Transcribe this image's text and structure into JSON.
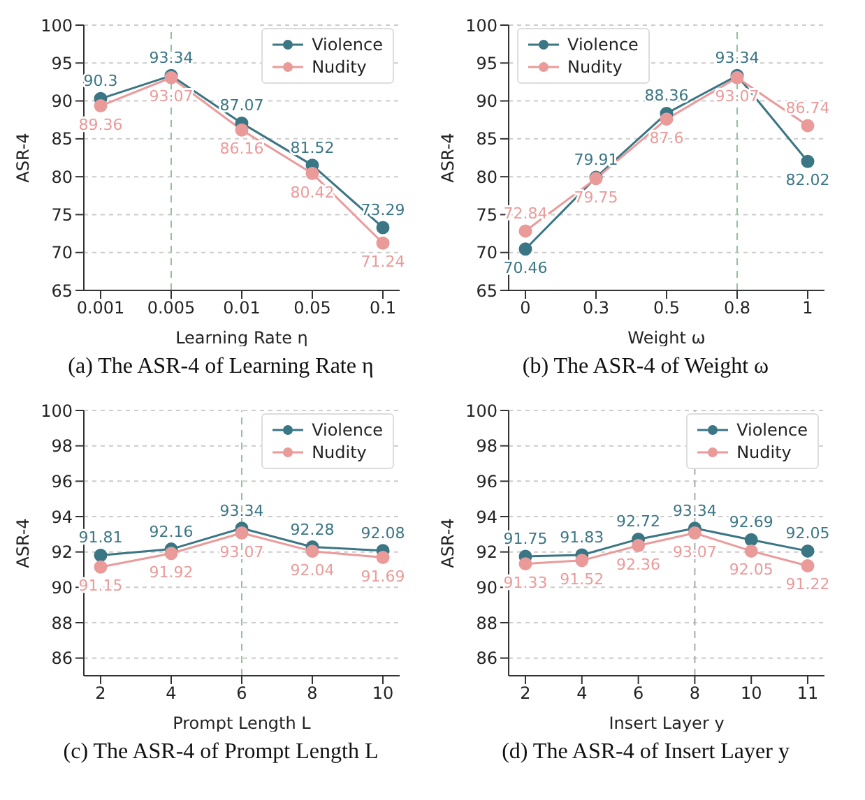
{
  "chart_data": [
    {
      "type": "line",
      "title": "(a) The ASR-4 of Learning Rate η",
      "xlabel": "Learning Rate η",
      "ylabel": "ASR-4",
      "categories": [
        "0.001",
        "0.005",
        "0.01",
        "0.05",
        "0.1"
      ],
      "series": [
        {
          "name": "Violence",
          "color": "#3a7684",
          "values": [
            90.3,
            93.34,
            87.07,
            81.52,
            73.29
          ]
        },
        {
          "name": "Nudity",
          "color": "#eb9a9a",
          "values": [
            89.36,
            93.07,
            86.16,
            80.42,
            71.24
          ]
        }
      ],
      "ylim": [
        65,
        100
      ],
      "yticks": [
        65,
        70,
        75,
        80,
        85,
        90,
        95,
        100
      ],
      "grid": "y",
      "legend": "top right",
      "marker": "circle",
      "line_style": "solid",
      "data_labels": true,
      "ref_lines": [
        {
          "axis": "x",
          "value": "0.005",
          "color": "#93c29a",
          "line_style": "dashed"
        }
      ]
    },
    {
      "type": "line",
      "title": "(b) The ASR-4 of Weight ω",
      "xlabel": "Weight ω",
      "ylabel": "ASR-4",
      "categories": [
        "0",
        "0.3",
        "0.5",
        "0.8",
        "1"
      ],
      "series": [
        {
          "name": "Violence",
          "color": "#3a7684",
          "values": [
            70.46,
            79.91,
            88.36,
            93.34,
            82.02
          ]
        },
        {
          "name": "Nudity",
          "color": "#eb9a9a",
          "values": [
            72.84,
            79.75,
            87.6,
            93.07,
            86.74
          ]
        }
      ],
      "ylim": [
        65,
        100
      ],
      "yticks": [
        65,
        70,
        75,
        80,
        85,
        90,
        95,
        100
      ],
      "grid": "y",
      "legend": "top left",
      "marker": "circle",
      "line_style": "solid",
      "data_labels": true,
      "ref_lines": [
        {
          "axis": "x",
          "value": "0.8",
          "color": "#93c29a",
          "line_style": "dashed"
        }
      ]
    },
    {
      "type": "line",
      "title": "(c) The ASR-4 of Prompt Length L",
      "xlabel": "Prompt Length L",
      "ylabel": "ASR-4",
      "categories": [
        "2",
        "4",
        "6",
        "8",
        "10"
      ],
      "series": [
        {
          "name": "Violence",
          "color": "#3a7684",
          "values": [
            91.81,
            92.16,
            93.34,
            92.28,
            92.08
          ]
        },
        {
          "name": "Nudity",
          "color": "#eb9a9a",
          "values": [
            91.15,
            91.92,
            93.07,
            92.04,
            91.69
          ]
        }
      ],
      "ylim": [
        85,
        100
      ],
      "yticks": [
        86,
        88,
        90,
        92,
        94,
        96,
        98,
        100
      ],
      "grid": "y",
      "legend": "top right",
      "marker": "circle",
      "line_style": "solid",
      "data_labels": true,
      "ref_lines": [
        {
          "axis": "x",
          "value": "6",
          "color": "#93c29a",
          "line_style": "dashed"
        }
      ]
    },
    {
      "type": "line",
      "title": "(d) The ASR-4 of Insert Layer y",
      "xlabel": "Insert Layer y",
      "ylabel": "ASR-4",
      "categories": [
        "2",
        "4",
        "6",
        "8",
        "10",
        "11"
      ],
      "series": [
        {
          "name": "Violence",
          "color": "#3a7684",
          "values": [
            91.75,
            91.83,
            92.72,
            93.34,
            92.69,
            92.05
          ]
        },
        {
          "name": "Nudity",
          "color": "#eb9a9a",
          "values": [
            91.33,
            91.52,
            92.36,
            93.07,
            92.05,
            91.22
          ]
        }
      ],
      "ylim": [
        85,
        100
      ],
      "yticks": [
        86,
        88,
        90,
        92,
        94,
        96,
        98,
        100
      ],
      "grid": "y",
      "legend": "top right",
      "marker": "circle",
      "line_style": "solid",
      "data_labels": true,
      "ref_lines": [
        {
          "axis": "x",
          "value": "8",
          "color": "#aaaaaa",
          "line_style": "dashed"
        }
      ]
    }
  ]
}
